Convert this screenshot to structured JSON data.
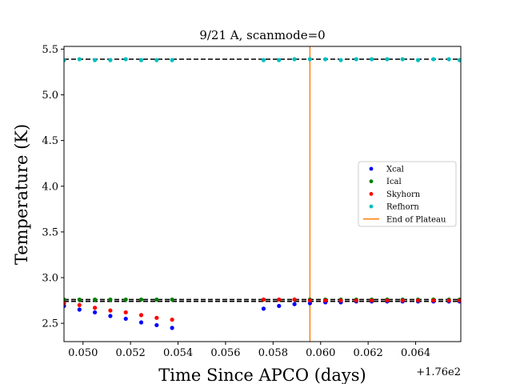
{
  "chart_data": {
    "type": "scatter",
    "title": "9/21 A, scanmode=0",
    "xlabel": "Time Since APCO (days)",
    "ylabel": "Temperature (K)",
    "offset_label": "+1.76e2",
    "xlim": [
      0.0492,
      0.0659
    ],
    "ylim": [
      2.3,
      5.53
    ],
    "x_ticks": [
      0.05,
      0.052,
      0.054,
      0.056,
      0.058,
      0.06,
      0.062,
      0.064
    ],
    "x_tick_labels": [
      "0.050",
      "0.052",
      "0.054",
      "0.056",
      "0.058",
      "0.060",
      "0.062",
      "0.064"
    ],
    "y_ticks": [
      2.5,
      3.0,
      3.5,
      4.0,
      4.5,
      5.0,
      5.5
    ],
    "y_tick_labels": [
      "2.5",
      "3.0",
      "3.5",
      "4.0",
      "4.5",
      "5.0",
      "5.5"
    ],
    "grid": false,
    "legend_position": "right",
    "series": [
      {
        "name": "Xcal",
        "color": "#0000ff",
        "x": [
          0.0492,
          0.04985,
          0.0505,
          0.05115,
          0.0518,
          0.05245,
          0.0531,
          0.05375,
          0.0576,
          0.05825,
          0.0589,
          0.05955,
          0.0602,
          0.06085,
          0.0615,
          0.06215,
          0.0628,
          0.06345,
          0.0641,
          0.06475,
          0.0654,
          0.06585
        ],
        "y": [
          2.69,
          2.65,
          2.62,
          2.58,
          2.55,
          2.51,
          2.48,
          2.45,
          2.66,
          2.69,
          2.71,
          2.72,
          2.73,
          2.73,
          2.74,
          2.74,
          2.74,
          2.74,
          2.74,
          2.74,
          2.74,
          2.74
        ]
      },
      {
        "name": "Ical",
        "color": "#008000",
        "x": [
          0.0492,
          0.04985,
          0.0505,
          0.05115,
          0.0518,
          0.05245,
          0.0531,
          0.05375,
          0.0576,
          0.05825,
          0.0589,
          0.05955,
          0.0602,
          0.06085,
          0.0615,
          0.06215,
          0.0628,
          0.06345,
          0.0641,
          0.06475,
          0.0654,
          0.06585
        ],
        "y": [
          2.76,
          2.76,
          2.76,
          2.76,
          2.76,
          2.76,
          2.76,
          2.76,
          2.76,
          2.76,
          2.76,
          2.76,
          2.76,
          2.76,
          2.76,
          2.76,
          2.76,
          2.76,
          2.76,
          2.76,
          2.76,
          2.76
        ]
      },
      {
        "name": "Skyhorn",
        "color": "#ff0000",
        "x": [
          0.0492,
          0.04985,
          0.0505,
          0.05115,
          0.0518,
          0.05245,
          0.0531,
          0.05375,
          0.0576,
          0.05825,
          0.0589,
          0.05955,
          0.0602,
          0.06085,
          0.0615,
          0.06215,
          0.0628,
          0.06345,
          0.0641,
          0.06475,
          0.0654,
          0.06585
        ],
        "y": [
          2.72,
          2.7,
          2.67,
          2.64,
          2.62,
          2.59,
          2.56,
          2.54,
          2.76,
          2.76,
          2.76,
          2.75,
          2.75,
          2.75,
          2.75,
          2.75,
          2.75,
          2.75,
          2.75,
          2.75,
          2.75,
          2.75
        ]
      },
      {
        "name": "Refhorn",
        "color": "#00bfbf",
        "x": [
          0.0492,
          0.04985,
          0.0505,
          0.05115,
          0.0518,
          0.05245,
          0.0531,
          0.05375,
          0.0576,
          0.05825,
          0.0589,
          0.05955,
          0.0602,
          0.06085,
          0.0615,
          0.06215,
          0.0628,
          0.06345,
          0.0641,
          0.06475,
          0.0654,
          0.06585
        ],
        "y": [
          5.38,
          5.39,
          5.38,
          5.38,
          5.39,
          5.38,
          5.38,
          5.38,
          5.38,
          5.38,
          5.39,
          5.39,
          5.39,
          5.38,
          5.39,
          5.39,
          5.39,
          5.39,
          5.38,
          5.39,
          5.39,
          5.38
        ]
      }
    ],
    "reference_lines": [
      {
        "orientation": "horizontal",
        "y": 5.39,
        "style": "dashed",
        "color": "#000000"
      },
      {
        "orientation": "horizontal",
        "y": 2.76,
        "style": "dashed",
        "color": "#000000"
      },
      {
        "orientation": "horizontal",
        "y": 2.74,
        "style": "dashed",
        "color": "#000000"
      },
      {
        "orientation": "vertical",
        "x": 0.05955,
        "name": "End of Plateau",
        "color": "#ff7f0e"
      }
    ],
    "legend": [
      {
        "label": "Xcal",
        "marker": "dot",
        "color": "#0000ff"
      },
      {
        "label": "Ical",
        "marker": "dot",
        "color": "#008000"
      },
      {
        "label": "Skyhorn",
        "marker": "dot",
        "color": "#ff0000"
      },
      {
        "label": "Refhorn",
        "marker": "dot",
        "color": "#00bfbf"
      },
      {
        "label": "End of Plateau",
        "marker": "line",
        "color": "#ff7f0e"
      }
    ]
  }
}
